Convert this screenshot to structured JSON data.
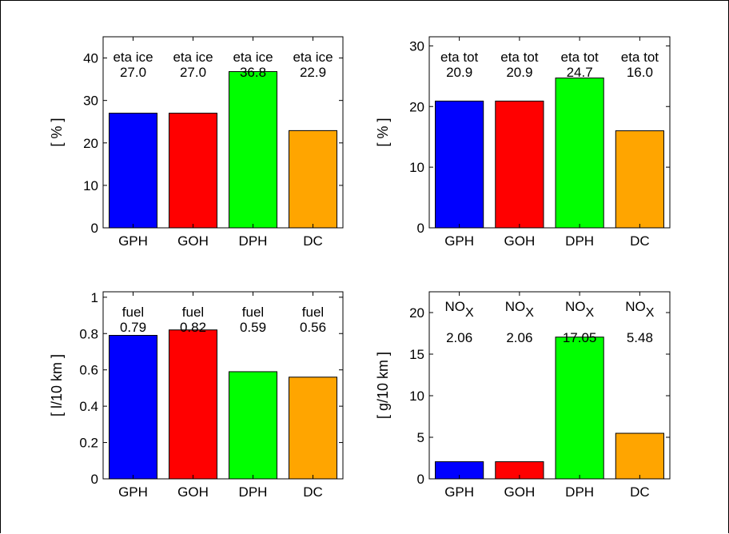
{
  "chart_data": [
    {
      "type": "bar",
      "categories": [
        "GPH",
        "GOH",
        "DPH",
        "DC"
      ],
      "values": [
        27.0,
        27.0,
        36.8,
        22.9
      ],
      "colors": [
        "#0000ff",
        "#ff0000",
        "#00ff00",
        "#ffa500"
      ],
      "annotation_label": "eta ice",
      "annotation_values": [
        "27.0",
        "27.0",
        "36.8",
        "22.9"
      ],
      "ylabel": "[ % ]",
      "ylim": [
        0,
        45
      ],
      "yticks": [
        0,
        10,
        20,
        30,
        40
      ],
      "ytick_labels": [
        "0",
        "10",
        "20",
        "30",
        "40"
      ],
      "grid": false
    },
    {
      "type": "bar",
      "categories": [
        "GPH",
        "GOH",
        "DPH",
        "DC"
      ],
      "values": [
        20.9,
        20.9,
        24.7,
        16.0
      ],
      "colors": [
        "#0000ff",
        "#ff0000",
        "#00ff00",
        "#ffa500"
      ],
      "annotation_label": "eta tot",
      "annotation_values": [
        "20.9",
        "20.9",
        "24.7",
        "16.0"
      ],
      "ylabel": "[ % ]",
      "ylim": [
        0,
        31.5
      ],
      "yticks": [
        0,
        10,
        20,
        30
      ],
      "ytick_labels": [
        "0",
        "10",
        "20",
        "30"
      ],
      "grid": false
    },
    {
      "type": "bar",
      "categories": [
        "GPH",
        "GOH",
        "DPH",
        "DC"
      ],
      "values": [
        0.79,
        0.82,
        0.59,
        0.56
      ],
      "colors": [
        "#0000ff",
        "#ff0000",
        "#00ff00",
        "#ffa500"
      ],
      "annotation_label": "fuel",
      "annotation_values": [
        "0.79",
        "0.82",
        "0.59",
        "0.56"
      ],
      "ylabel": "[ l/10 km ]",
      "ylim": [
        0,
        1.03
      ],
      "yticks": [
        0,
        0.2,
        0.4,
        0.6,
        0.8,
        1
      ],
      "ytick_labels": [
        "0",
        "0.2",
        "0.4",
        "0.6",
        "0.8",
        "1"
      ],
      "grid": false
    },
    {
      "type": "bar",
      "categories": [
        "GPH",
        "GOH",
        "DPH",
        "DC"
      ],
      "values": [
        2.06,
        2.06,
        17.05,
        5.48
      ],
      "colors": [
        "#0000ff",
        "#ff0000",
        "#00ff00",
        "#ffa500"
      ],
      "annotation_label": "NO",
      "annotation_subscript": "X",
      "annotation_values": [
        "2.06",
        "2.06",
        "17.05",
        "5.48"
      ],
      "ylabel": "[ g/10 km ]",
      "ylim": [
        0,
        22.5
      ],
      "yticks": [
        0,
        5,
        10,
        15,
        20
      ],
      "ytick_labels": [
        "0",
        "5",
        "10",
        "15",
        "20"
      ],
      "grid": false
    }
  ]
}
